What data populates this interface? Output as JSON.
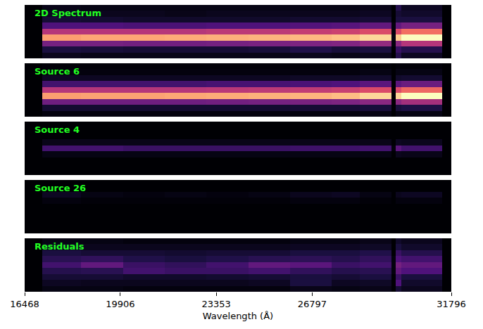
{
  "chart_data": [
    {
      "type": "heatmap",
      "title": "2D Spectrum",
      "tick_labels": false,
      "xlim": [
        16468,
        31796
      ],
      "ylim": [
        0,
        9
      ],
      "zlim": [
        0,
        1
      ],
      "x": [
        16468,
        17100,
        18500,
        20000,
        21500,
        23000,
        24500,
        26000,
        27500,
        28500,
        29650,
        29800,
        30000,
        31467,
        31796
      ],
      "y": [
        9,
        8,
        7,
        6,
        5,
        4,
        3,
        2,
        1,
        0
      ],
      "z": [
        [
          0,
          0.04,
          0.03,
          0.03,
          0.03,
          0.03,
          0.03,
          0.03,
          0.03,
          0.04,
          0,
          0.15,
          0.06,
          0
        ],
        [
          0,
          0.06,
          0.05,
          0.05,
          0.04,
          0.05,
          0.05,
          0.05,
          0.05,
          0.06,
          0,
          0.1,
          0.08,
          0
        ],
        [
          0,
          0.1,
          0.09,
          0.08,
          0.08,
          0.08,
          0.08,
          0.09,
          0.09,
          0.1,
          0,
          0.12,
          0.12,
          0
        ],
        [
          0,
          0.25,
          0.25,
          0.24,
          0.24,
          0.25,
          0.25,
          0.26,
          0.27,
          0.3,
          0.02,
          0.3,
          0.35,
          0
        ],
        [
          0,
          0.5,
          0.5,
          0.5,
          0.5,
          0.52,
          0.52,
          0.54,
          0.56,
          0.6,
          0.02,
          0.6,
          0.7,
          0
        ],
        [
          0,
          0.8,
          0.82,
          0.82,
          0.83,
          0.84,
          0.85,
          0.86,
          0.88,
          0.92,
          0.03,
          0.9,
          1,
          0
        ],
        [
          0,
          0.35,
          0.35,
          0.34,
          0.34,
          0.35,
          0.36,
          0.37,
          0.38,
          0.42,
          0.02,
          0.4,
          0.5,
          0
        ],
        [
          0,
          0.12,
          0.11,
          0.1,
          0.1,
          0.1,
          0.11,
          0.14,
          0.11,
          0.12,
          0,
          0.2,
          0.15,
          0
        ],
        [
          0,
          0.05,
          0.04,
          0.04,
          0.04,
          0.04,
          0.04,
          0.05,
          0.04,
          0.05,
          0,
          0.15,
          0.06,
          0
        ]
      ]
    },
    {
      "type": "heatmap",
      "title": "Source 6",
      "tick_labels": false,
      "xlim": [
        16468,
        31796
      ],
      "ylim": [
        0,
        9
      ],
      "zlim": [
        0,
        1
      ],
      "x": [
        16468,
        17100,
        18500,
        20000,
        21500,
        23000,
        24500,
        26000,
        27500,
        28500,
        29650,
        29800,
        30000,
        31467,
        31796
      ],
      "y": [
        9,
        8,
        7,
        6,
        5,
        4,
        3,
        2,
        1,
        0
      ],
      "z": [
        [
          0,
          0.01,
          0.01,
          0.01,
          0.01,
          0.01,
          0.01,
          0.01,
          0.01,
          0.01,
          0,
          0.01,
          0.01,
          0
        ],
        [
          0,
          0.02,
          0.02,
          0.02,
          0.02,
          0.02,
          0.02,
          0.02,
          0.02,
          0.03,
          0,
          0.03,
          0.03,
          0
        ],
        [
          0,
          0.06,
          0.06,
          0.06,
          0.06,
          0.06,
          0.06,
          0.07,
          0.07,
          0.08,
          0,
          0.08,
          0.09,
          0
        ],
        [
          0,
          0.22,
          0.22,
          0.22,
          0.22,
          0.23,
          0.23,
          0.24,
          0.25,
          0.28,
          0,
          0.28,
          0.32,
          0
        ],
        [
          0,
          0.5,
          0.5,
          0.5,
          0.5,
          0.51,
          0.52,
          0.53,
          0.55,
          0.6,
          0,
          0.6,
          0.68,
          0
        ],
        [
          0,
          0.8,
          0.81,
          0.81,
          0.82,
          0.83,
          0.84,
          0.85,
          0.87,
          0.92,
          0,
          0.92,
          1,
          0
        ],
        [
          0,
          0.33,
          0.33,
          0.33,
          0.33,
          0.34,
          0.35,
          0.36,
          0.37,
          0.4,
          0,
          0.4,
          0.46,
          0
        ],
        [
          0,
          0.09,
          0.09,
          0.09,
          0.09,
          0.09,
          0.09,
          0.1,
          0.1,
          0.11,
          0,
          0.11,
          0.13,
          0
        ],
        [
          0,
          0.02,
          0.02,
          0.02,
          0.02,
          0.02,
          0.02,
          0.02,
          0.02,
          0.03,
          0,
          0.03,
          0.03,
          0
        ]
      ]
    },
    {
      "type": "heatmap",
      "title": "Source 4",
      "tick_labels": false,
      "xlim": [
        16468,
        31796
      ],
      "ylim": [
        0,
        9
      ],
      "zlim": [
        0,
        1
      ],
      "x": [
        16468,
        17100,
        18500,
        20000,
        21500,
        23000,
        24500,
        26000,
        27500,
        28500,
        29650,
        29800,
        30000,
        31467,
        31796
      ],
      "y": [
        9,
        8,
        7,
        6,
        5,
        4,
        3,
        2,
        1,
        0
      ],
      "z": [
        [
          0,
          0,
          0,
          0,
          0,
          0,
          0,
          0,
          0,
          0,
          0,
          0,
          0,
          0
        ],
        [
          0,
          0,
          0,
          0,
          0,
          0,
          0,
          0,
          0,
          0,
          0,
          0,
          0,
          0
        ],
        [
          0,
          0,
          0,
          0,
          0,
          0,
          0,
          0,
          0,
          0,
          0,
          0,
          0,
          0
        ],
        [
          0,
          0.04,
          0.04,
          0.04,
          0.04,
          0.04,
          0.04,
          0.04,
          0.04,
          0.04,
          0,
          0.06,
          0.05,
          0
        ],
        [
          0,
          0.22,
          0.22,
          0.2,
          0.2,
          0.2,
          0.2,
          0.21,
          0.21,
          0.22,
          0.02,
          0.28,
          0.22,
          0
        ],
        [
          0,
          0.03,
          0.03,
          0.03,
          0.03,
          0.03,
          0.03,
          0.03,
          0.03,
          0.03,
          0,
          0.05,
          0.04,
          0
        ],
        [
          0,
          0,
          0,
          0,
          0,
          0,
          0,
          0,
          0,
          0,
          0,
          0,
          0,
          0
        ],
        [
          0,
          0,
          0,
          0,
          0,
          0,
          0,
          0,
          0,
          0,
          0,
          0,
          0,
          0
        ],
        [
          0,
          0,
          0,
          0,
          0,
          0,
          0,
          0,
          0,
          0,
          0,
          0,
          0,
          0
        ]
      ]
    },
    {
      "type": "heatmap",
      "title": "Source 26",
      "tick_labels": false,
      "xlim": [
        16468,
        31796
      ],
      "ylim": [
        0,
        9
      ],
      "zlim": [
        0,
        1
      ],
      "x": [
        16468,
        17100,
        18500,
        20000,
        21500,
        23000,
        24500,
        26000,
        27500,
        28500,
        29650,
        29800,
        30000,
        31467,
        31796
      ],
      "y": [
        9,
        8,
        7,
        6,
        5,
        4,
        3,
        2,
        1,
        0
      ],
      "z": [
        [
          0,
          0,
          0,
          0,
          0,
          0,
          0,
          0,
          0,
          0,
          0,
          0,
          0,
          0
        ],
        [
          0,
          0,
          0,
          0,
          0,
          0,
          0,
          0,
          0,
          0,
          0,
          0,
          0,
          0
        ],
        [
          0,
          0.06,
          0.03,
          0.02,
          0.03,
          0.02,
          0.03,
          0.05,
          0.06,
          0.03,
          0,
          0.05,
          0.06,
          0
        ],
        [
          0,
          0.02,
          0.01,
          0.01,
          0.01,
          0.01,
          0.01,
          0.02,
          0.02,
          0.01,
          0,
          0.02,
          0.02,
          0
        ],
        [
          0,
          0,
          0,
          0,
          0,
          0,
          0,
          0,
          0,
          0,
          0,
          0,
          0,
          0
        ],
        [
          0,
          0,
          0,
          0,
          0,
          0,
          0,
          0,
          0,
          0,
          0,
          0,
          0,
          0
        ],
        [
          0,
          0,
          0,
          0,
          0,
          0,
          0,
          0,
          0,
          0,
          0,
          0,
          0,
          0
        ],
        [
          0,
          0,
          0,
          0,
          0,
          0,
          0,
          0,
          0,
          0,
          0,
          0,
          0,
          0
        ],
        [
          0,
          0,
          0,
          0,
          0,
          0,
          0,
          0,
          0,
          0,
          0,
          0,
          0,
          0
        ]
      ]
    },
    {
      "type": "heatmap",
      "title": "Residuals",
      "tick_labels": "x",
      "xlabel": "Wavelength (Å)",
      "xlim": [
        16468,
        31796
      ],
      "xticks": [
        16468,
        19906,
        23353,
        26797,
        31796
      ],
      "ylim": [
        0,
        9
      ],
      "zlim": [
        0,
        1
      ],
      "x": [
        16468,
        17100,
        18500,
        20000,
        21500,
        23000,
        24500,
        26000,
        27500,
        28500,
        29650,
        29800,
        30000,
        31467,
        31796
      ],
      "y": [
        9,
        8,
        7,
        6,
        5,
        4,
        3,
        2,
        1,
        0
      ],
      "z": [
        [
          0,
          0.03,
          0.03,
          0.02,
          0.02,
          0.02,
          0.02,
          0.03,
          0.03,
          0.04,
          0,
          0.08,
          0.05,
          0
        ],
        [
          0,
          0.06,
          0.05,
          0.05,
          0.05,
          0.05,
          0.05,
          0.06,
          0.06,
          0.07,
          0,
          0.12,
          0.08,
          0
        ],
        [
          0,
          0.12,
          0.1,
          0.1,
          0.09,
          0.1,
          0.1,
          0.12,
          0.12,
          0.14,
          0,
          0.2,
          0.15,
          0
        ],
        [
          0,
          0.16,
          0.18,
          0.14,
          0.12,
          0.14,
          0.16,
          0.17,
          0.15,
          0.18,
          0.02,
          0.25,
          0.22,
          0
        ],
        [
          0,
          0.22,
          0.3,
          0.2,
          0.18,
          0.22,
          0.3,
          0.28,
          0.2,
          0.22,
          0.02,
          0.35,
          0.3,
          0
        ],
        [
          0,
          0.15,
          0.16,
          0.22,
          0.2,
          0.2,
          0.22,
          0.18,
          0.15,
          0.16,
          0.02,
          0.3,
          0.25,
          0
        ],
        [
          0,
          0.1,
          0.1,
          0.08,
          0.08,
          0.09,
          0.1,
          0.12,
          0.1,
          0.12,
          0,
          0.2,
          0.12,
          0
        ],
        [
          0,
          0.06,
          0.05,
          0.05,
          0.05,
          0.05,
          0.06,
          0.12,
          0.06,
          0.07,
          0,
          0.25,
          0.08,
          0
        ],
        [
          0,
          0.03,
          0.03,
          0.02,
          0.02,
          0.02,
          0.02,
          0.04,
          0.03,
          0.04,
          0,
          0.1,
          0.05,
          0
        ]
      ]
    }
  ]
}
